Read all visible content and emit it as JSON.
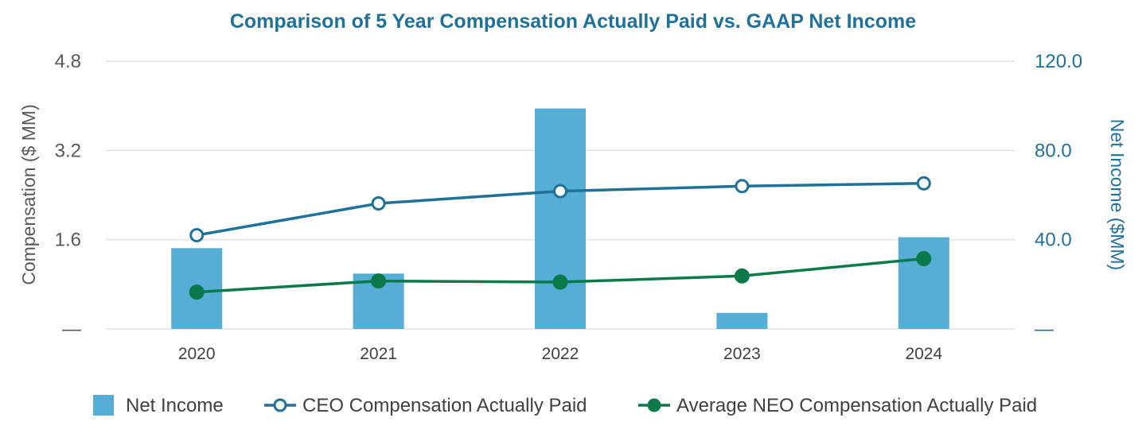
{
  "chart_data": {
    "type": "bar",
    "title": "Comparison of 5 Year Compensation Actually Paid vs. GAAP Net Income",
    "categories": [
      "2020",
      "2021",
      "2022",
      "2023",
      "2024"
    ],
    "y_left": {
      "label": "Compensation ($ MM)",
      "ylim": [
        0,
        4.8
      ],
      "ticks": [
        0,
        1.6,
        3.2,
        4.8
      ],
      "tick_labels": [
        "—",
        "1.6",
        "3.2",
        "4.8"
      ]
    },
    "y_right": {
      "label": "Net Income ($MM)",
      "ylim": [
        0,
        120
      ],
      "ticks": [
        0,
        40,
        80,
        120
      ],
      "tick_labels": [
        "—",
        "40.0",
        "80.0",
        "120.0"
      ]
    },
    "grid": true,
    "series": [
      {
        "name": "Net Income",
        "kind": "bar",
        "axis": "right",
        "values": [
          36.2,
          24.8,
          98.8,
          7.2,
          41.1
        ],
        "color": "#56ADD6"
      },
      {
        "name": "CEO Compensation Actually Paid",
        "kind": "line",
        "marker": "hollow-circle",
        "axis": "left",
        "values": [
          1.68,
          2.25,
          2.47,
          2.56,
          2.61
        ],
        "color": "#1F7197"
      },
      {
        "name": "Average NEO Compensation Actually Paid",
        "kind": "line",
        "marker": "filled-circle",
        "axis": "left",
        "values": [
          0.66,
          0.86,
          0.84,
          0.95,
          1.26
        ],
        "color": "#0B7A4B"
      }
    ],
    "legend_position": "bottom",
    "colors": {
      "title": "#1F7197",
      "right_axis": "#1F7197",
      "gridline": "#E3E3E3"
    }
  }
}
